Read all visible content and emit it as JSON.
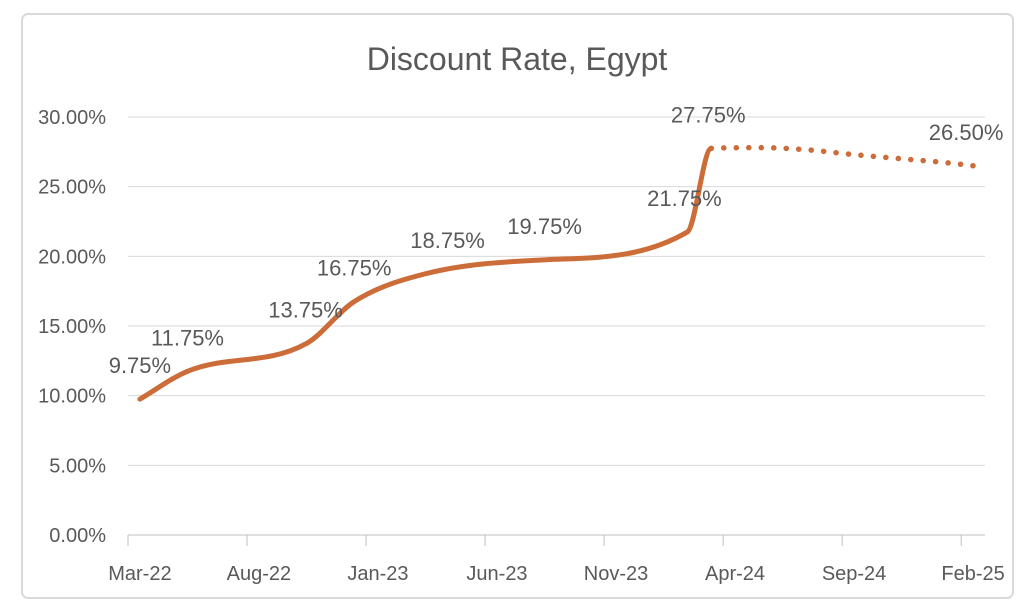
{
  "chart_data": {
    "type": "line",
    "title": "Discount Rate, Egypt",
    "legend": "none",
    "grid": true,
    "line_color": "#cc6c38",
    "x_axis": {
      "tick_labels": [
        "Mar-22",
        "Aug-22",
        "Jan-23",
        "Jun-23",
        "Nov-23",
        "Apr-24",
        "Sep-24",
        "Feb-25"
      ],
      "categories_per_tick": 5,
      "total_months": 36,
      "start_month": "Mar-22",
      "end_month": "Feb-25"
    },
    "y_axis": {
      "tick_labels": [
        "0.00%",
        "5.00%",
        "10.00%",
        "15.00%",
        "20.00%",
        "25.00%",
        "30.00%"
      ],
      "min": 0,
      "max": 30,
      "step": 5
    },
    "series": [
      {
        "name": "discount-rate-actual",
        "style": "solid",
        "points": [
          {
            "month": "Mar-22",
            "m": 0,
            "value": 9.75
          },
          {
            "month": "May-22",
            "m": 2,
            "value": 11.75
          },
          {
            "month": "Oct-22",
            "m": 7,
            "value": 13.75
          },
          {
            "month": "Dec-22",
            "m": 9,
            "value": 16.75
          },
          {
            "month": "Mar-23",
            "m": 12,
            "value": 18.75
          },
          {
            "month": "Aug-23",
            "m": 17,
            "value": 19.75
          },
          {
            "month": "Feb-24",
            "m": 23,
            "value": 21.75
          },
          {
            "month": "Mar-24",
            "m": 24,
            "value": 27.75
          }
        ]
      },
      {
        "name": "discount-rate-forecast",
        "style": "dotted",
        "points": [
          {
            "month": "Mar-24",
            "m": 24,
            "value": 27.75
          },
          {
            "month": "May-24",
            "m": 26,
            "value": 27.8
          },
          {
            "month": "Jul-24",
            "m": 28,
            "value": 27.65
          },
          {
            "month": "Sep-24",
            "m": 30,
            "value": 27.3
          },
          {
            "month": "Nov-24",
            "m": 32,
            "value": 27.0
          },
          {
            "month": "Jan-25",
            "m": 34,
            "value": 26.7
          },
          {
            "month": "Feb-25",
            "m": 35,
            "value": 26.5
          }
        ]
      }
    ],
    "data_labels": [
      {
        "text": "9.75%",
        "m": 0,
        "value": 9.75,
        "dx": 0
      },
      {
        "text": "11.75%",
        "m": 2,
        "value": 11.75,
        "dx": 0
      },
      {
        "text": "13.75%",
        "m": 7,
        "value": 13.75,
        "dx": -1
      },
      {
        "text": "16.75%",
        "m": 9,
        "value": 16.75,
        "dx": 0
      },
      {
        "text": "18.75%",
        "m": 12,
        "value": 18.75,
        "dx": 22
      },
      {
        "text": "19.75%",
        "m": 17,
        "value": 19.75,
        "dx": 0
      },
      {
        "text": "21.75%",
        "m": 23,
        "value": 21.75,
        "dx": -3
      },
      {
        "text": "27.75%",
        "m": 24,
        "value": 27.75,
        "dx": -3
      },
      {
        "text": "26.50%",
        "m": 35,
        "value": 26.5,
        "dx": -7
      }
    ],
    "colors": {
      "title": "#595959",
      "axis_labels": "#595959",
      "data_labels": "#595959",
      "gridline": "#d9d9d9",
      "axis_line": "#bfbfbf",
      "frame_border": "#d9d9d9",
      "background": "#ffffff"
    }
  }
}
